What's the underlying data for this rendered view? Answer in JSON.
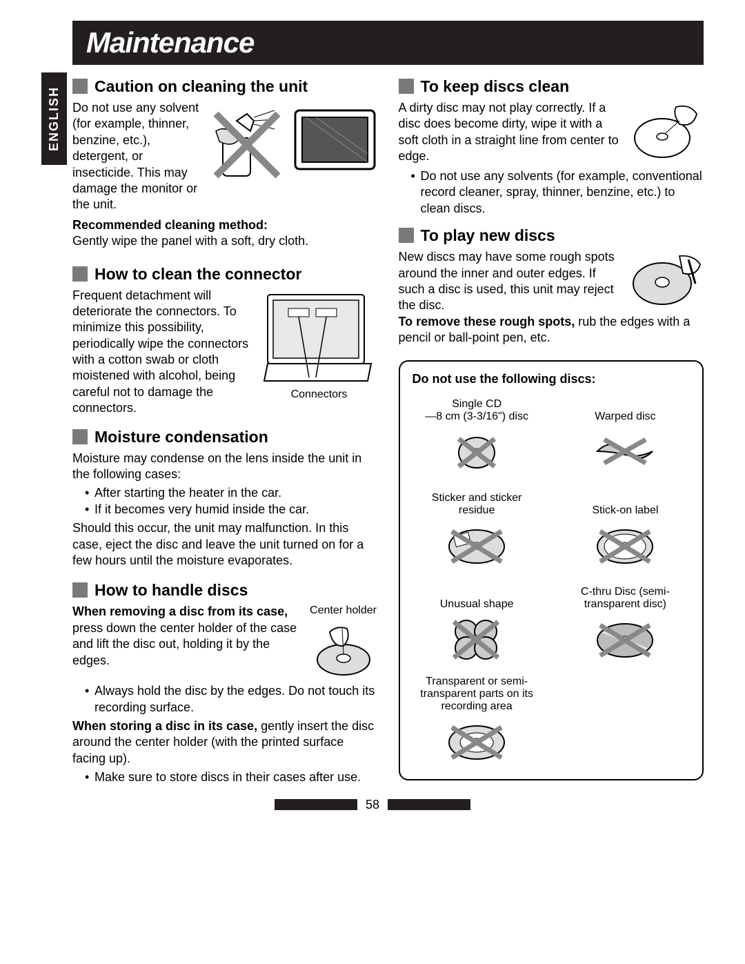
{
  "meta": {
    "page_number": "58",
    "language": "ENGLISH",
    "title": "Maintenance"
  },
  "left": {
    "caution": {
      "heading": "Caution on cleaning the unit",
      "p1": "Do not use any solvent (for example, thinner, benzine, etc.), detergent, or insecticide. This may damage the monitor or the unit.",
      "sub": "Recommended cleaning method:",
      "p2": "Gently wipe the panel with a soft, dry cloth."
    },
    "connector": {
      "heading": "How to clean the connector",
      "p1": "Frequent detachment will deteriorate the connectors. To minimize this possibility, periodically wipe the connectors with a cotton swab or cloth moistened with alcohol, being careful not to damage the connectors.",
      "caption": "Connectors"
    },
    "moisture": {
      "heading": "Moisture condensation",
      "p1": "Moisture may condense on the lens inside the unit in the following cases:",
      "b1": "After starting the heater in the car.",
      "b2": "If it becomes very humid inside the car.",
      "p2": "Should this occur, the unit may malfunction. In this case, eject the disc and leave the unit turned on for a few hours until the moisture evaporates."
    },
    "handle": {
      "heading": "How to handle discs",
      "sub1": "When removing a disc from its case,",
      "p1": " press down the center holder of the case and lift the disc out, holding it by the edges.",
      "caption": "Center holder",
      "b1": "Always hold the disc by the edges. Do not touch its recording surface.",
      "sub2": "When storing a disc in its case,",
      "p2": " gently insert the disc around the center holder (with the printed surface facing up).",
      "b2": "Make sure to store discs in their cases after use."
    }
  },
  "right": {
    "keepclean": {
      "heading": "To keep discs clean",
      "p1": "A dirty disc may not play correctly. If a disc does become dirty, wipe it with a soft cloth in a straight line from center to edge.",
      "b1": "Do not use any solvents (for example, conventional record cleaner, spray, thinner, benzine, etc.) to clean discs."
    },
    "playnew": {
      "heading": "To play new discs",
      "p1": "New discs may have some rough spots around the inner and outer edges. If such a disc is used, this unit may reject the disc.",
      "sub": "To remove these rough spots,",
      "p2": " rub the edges with a pencil or ball-point pen, etc."
    },
    "donotuse": {
      "heading": "Do not use the following discs:",
      "items": [
        {
          "label": "Single CD\n—8 cm (3-3/16\") disc"
        },
        {
          "label": "Warped disc"
        },
        {
          "label": "Sticker and sticker residue"
        },
        {
          "label": "Stick-on label"
        },
        {
          "label": "Unusual shape"
        },
        {
          "label": "C-thru Disc (semi-transparent disc)"
        },
        {
          "label": "Transparent or semi-transparent parts on its recording area"
        }
      ]
    }
  },
  "colors": {
    "header_bg": "#231f20",
    "square": "#7a7a7a"
  }
}
